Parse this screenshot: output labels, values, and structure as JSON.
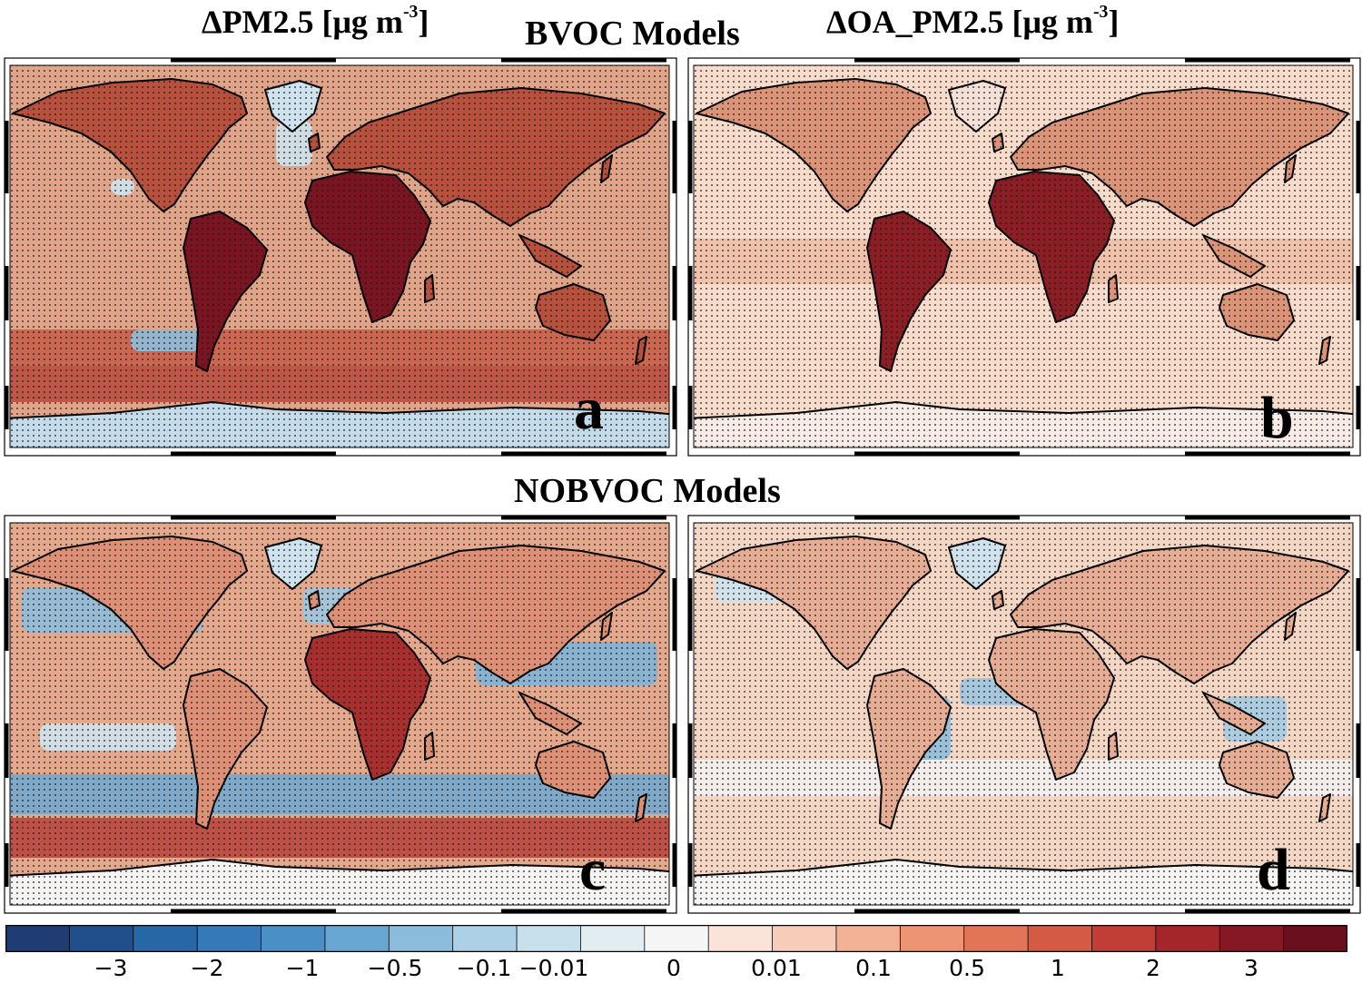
{
  "header": {
    "left_title": "ΔPM2.5 [μg m",
    "left_unit_sup": "-3",
    "left_close": "]",
    "right_title": "ΔOA_PM2.5 [μg m",
    "right_unit_sup": "-3",
    "right_close": "]",
    "row1_title": "BVOC Models",
    "row2_title": "NOBVOC Models"
  },
  "panels": [
    {
      "id": "a",
      "label": "a",
      "variable": "ΔPM2.5",
      "group": "BVOC Models"
    },
    {
      "id": "b",
      "label": "b",
      "variable": "ΔOA_PM2.5",
      "group": "BVOC Models"
    },
    {
      "id": "c",
      "label": "c",
      "variable": "ΔPM2.5",
      "group": "NOBVOC Models"
    },
    {
      "id": "d",
      "label": "d",
      "variable": "ΔOA_PM2.5",
      "group": "NOBVOC Models"
    }
  ],
  "colorbar": {
    "colors": [
      "#1f3d73",
      "#214f8c",
      "#2767a6",
      "#3579b8",
      "#4a8fc6",
      "#68a7d2",
      "#8cbcdc",
      "#acd0e5",
      "#c8e0ec",
      "#e2edf2",
      "#f5f5f5",
      "#fae3d8",
      "#f7ccb8",
      "#f3b296",
      "#ec9474",
      "#e27558",
      "#d45a44",
      "#c23d35",
      "#a5262a",
      "#861826",
      "#6a0f1e"
    ],
    "ticks": [
      "−3",
      "−2",
      "−1",
      "−0.5",
      "−0.1",
      "−0.01",
      "0",
      "0.01",
      "0.1",
      "0.5",
      "1",
      "2",
      "3"
    ]
  },
  "map_colors": {
    "ocean_a": "#e0a488",
    "ocean_b": "#f7dccc",
    "ocean_c": "#e4a88c",
    "ocean_d": "#f4d6c4",
    "land_hot": "#7a1420",
    "land_warm": "#b8503e",
    "blue_patch": "#8fbcdc",
    "light_blue": "#cfe3ee",
    "antarctica_a": "#c4dcea",
    "antarctica_cd": "#f6f4f3",
    "coast": "#000000"
  }
}
